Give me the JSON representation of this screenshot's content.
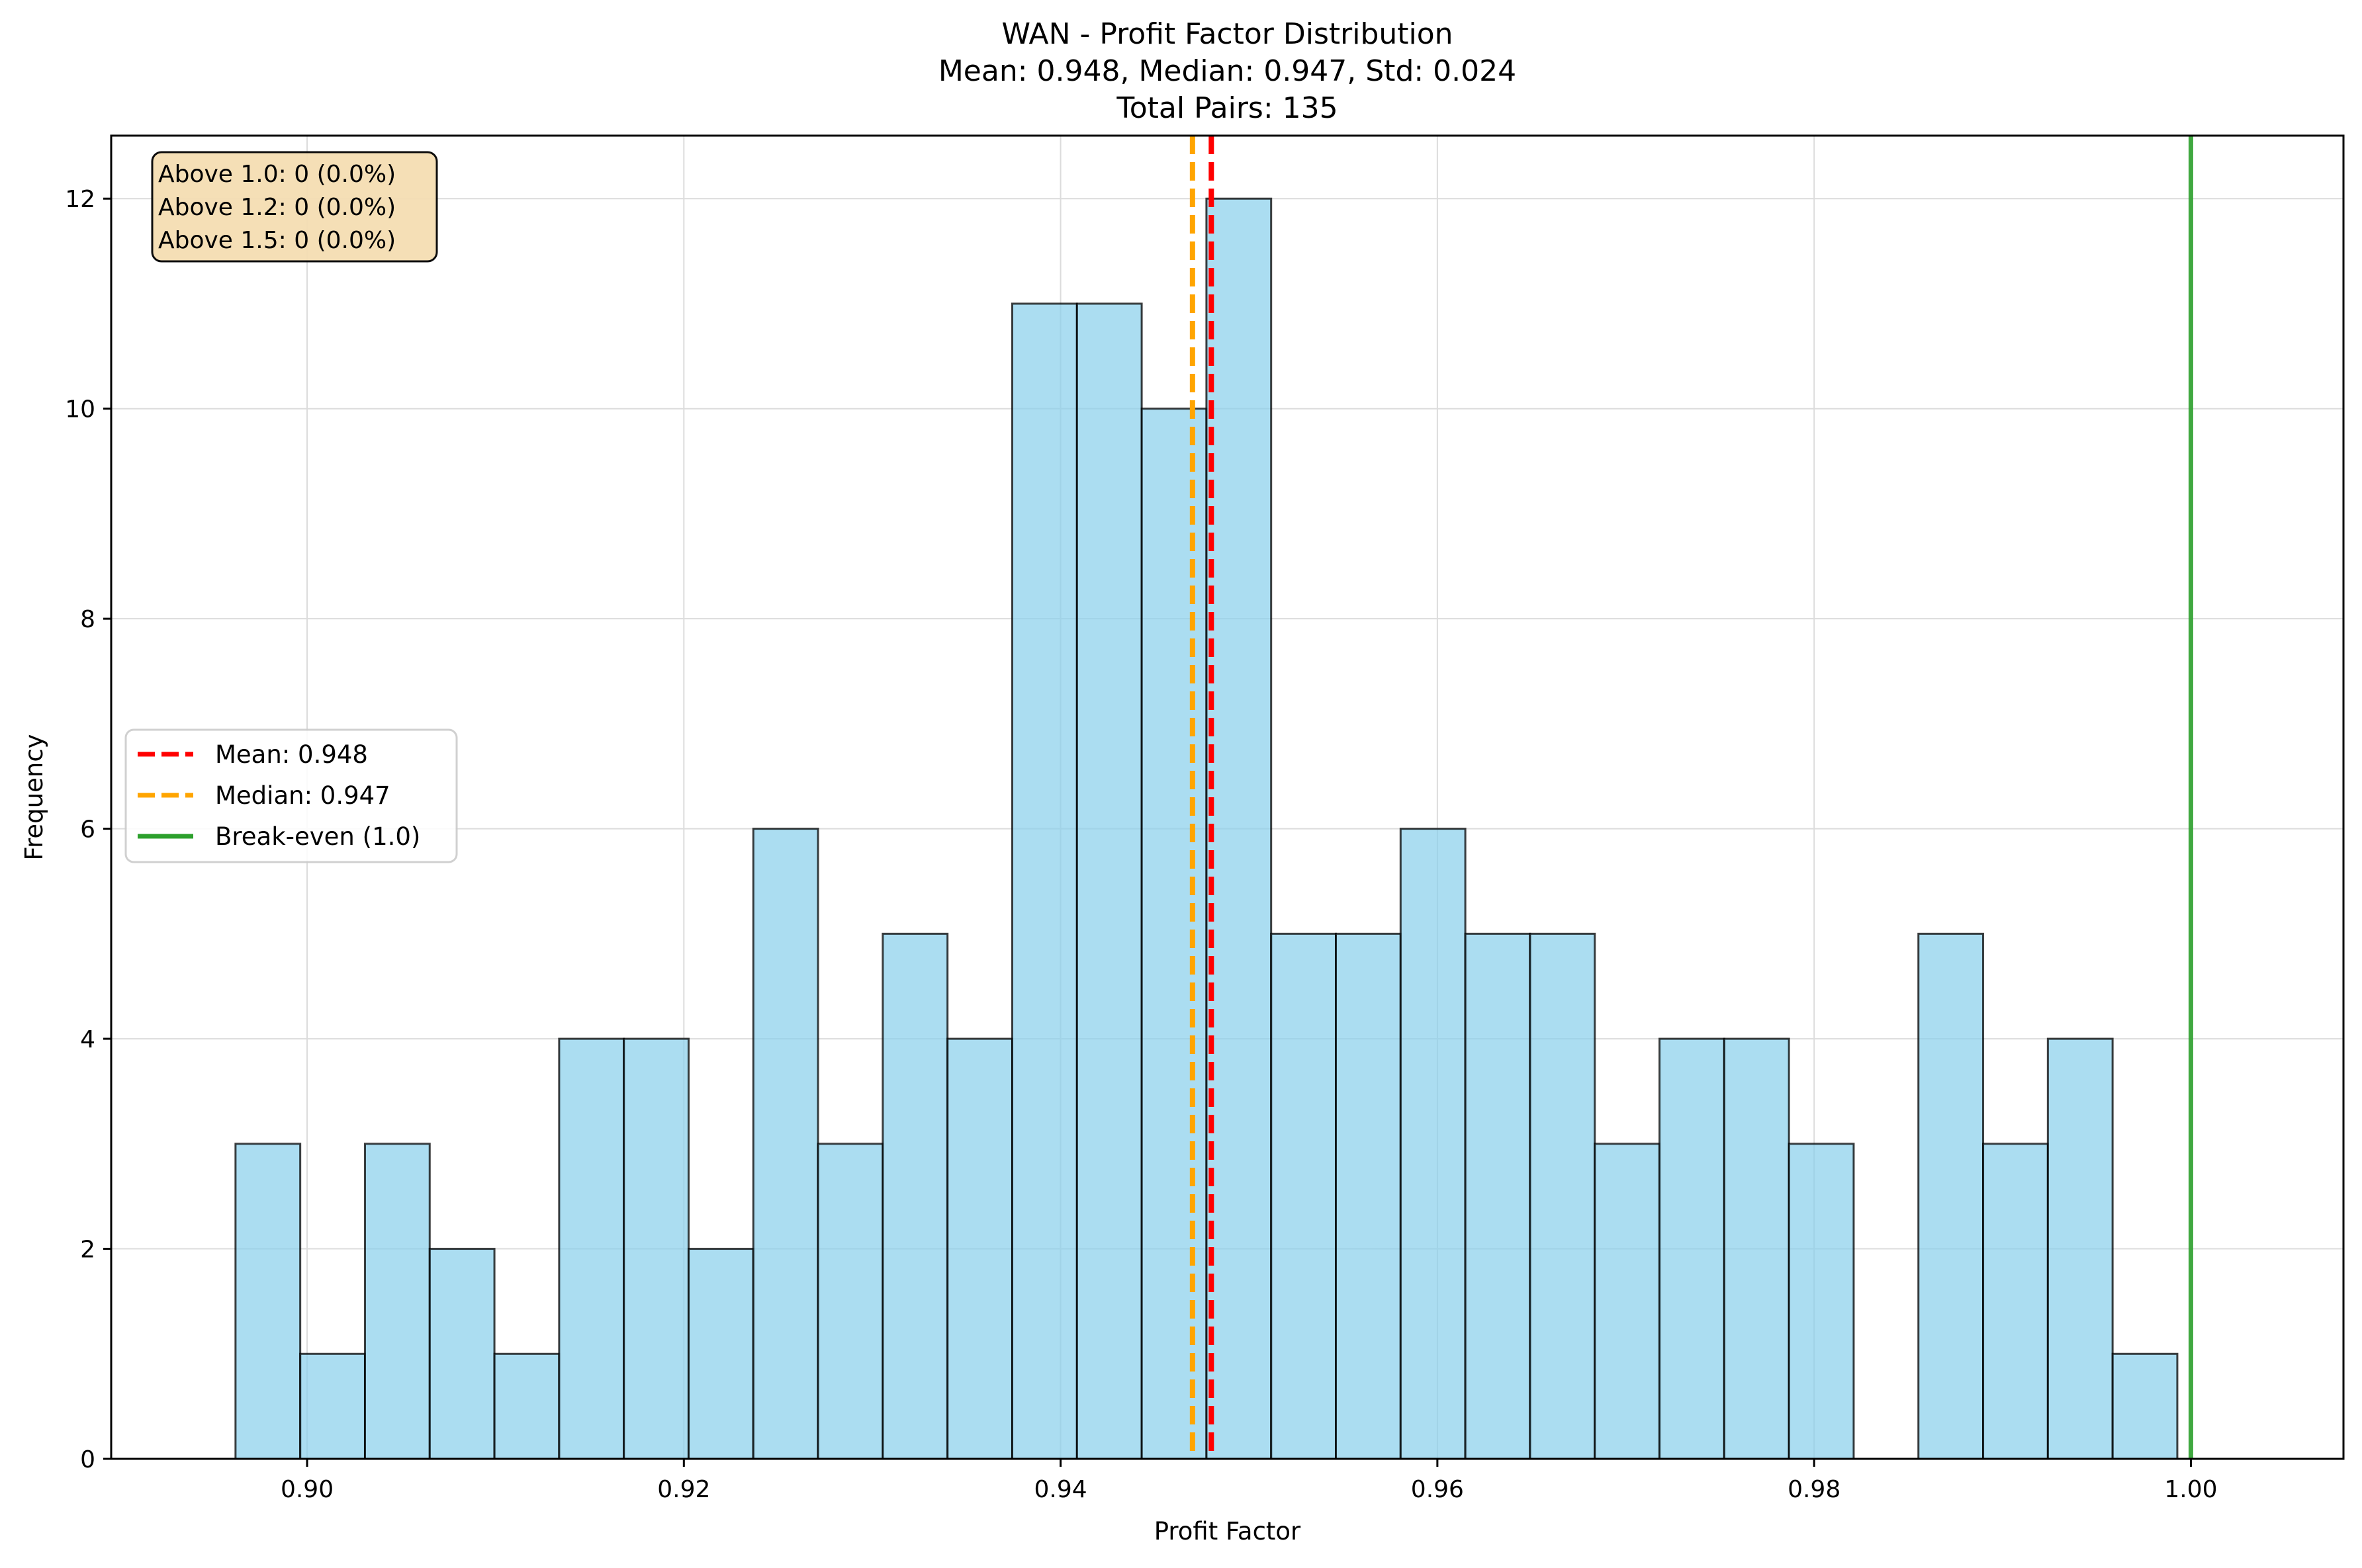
{
  "chart_data": {
    "type": "bar",
    "title_lines": [
      "WAN - Profit Factor Distribution",
      "Mean: 0.948, Median: 0.947, Std: 0.024",
      "Total Pairs: 135"
    ],
    "xlabel": "Profit Factor",
    "ylabel": "Frequency",
    "xlim": [
      0.8896,
      1.0081
    ],
    "ylim": [
      0,
      12.6
    ],
    "x_ticks": [
      0.9,
      0.92,
      0.94,
      0.96,
      0.98,
      1.0
    ],
    "x_tick_labels": [
      "0.90",
      "0.92",
      "0.94",
      "0.96",
      "0.98",
      "1.00"
    ],
    "y_ticks": [
      0,
      2,
      4,
      6,
      8,
      10,
      12
    ],
    "y_tick_labels": [
      "0",
      "2",
      "4",
      "6",
      "8",
      "10",
      "12"
    ],
    "grid": true,
    "bins": {
      "start": 0.8962,
      "width": 0.003436,
      "counts": [
        3,
        1,
        3,
        2,
        1,
        4,
        4,
        2,
        6,
        3,
        5,
        4,
        11,
        11,
        10,
        12,
        5,
        5,
        6,
        5,
        5,
        3,
        4,
        4,
        3,
        0,
        5,
        3,
        4,
        1
      ]
    },
    "bar_color": "#87ceeb",
    "bar_edge_color": "#000000",
    "reference_lines": [
      {
        "label": "Mean: 0.948",
        "x": 0.948,
        "color": "#ff0000",
        "style": "dashed"
      },
      {
        "label": "Median: 0.947",
        "x": 0.947,
        "color": "#ffa500",
        "style": "dashed"
      },
      {
        "label": "Break-even (1.0)",
        "x": 1.0,
        "color": "#2ca02c",
        "style": "solid"
      }
    ],
    "legend_position": "center-left",
    "annotation_box": {
      "lines": [
        "Above 1.0: 0 (0.0%)",
        "Above 1.2: 0 (0.0%)",
        "Above 1.5: 0 (0.0%)"
      ],
      "position": "top-left",
      "background": "#f5deb3"
    }
  }
}
